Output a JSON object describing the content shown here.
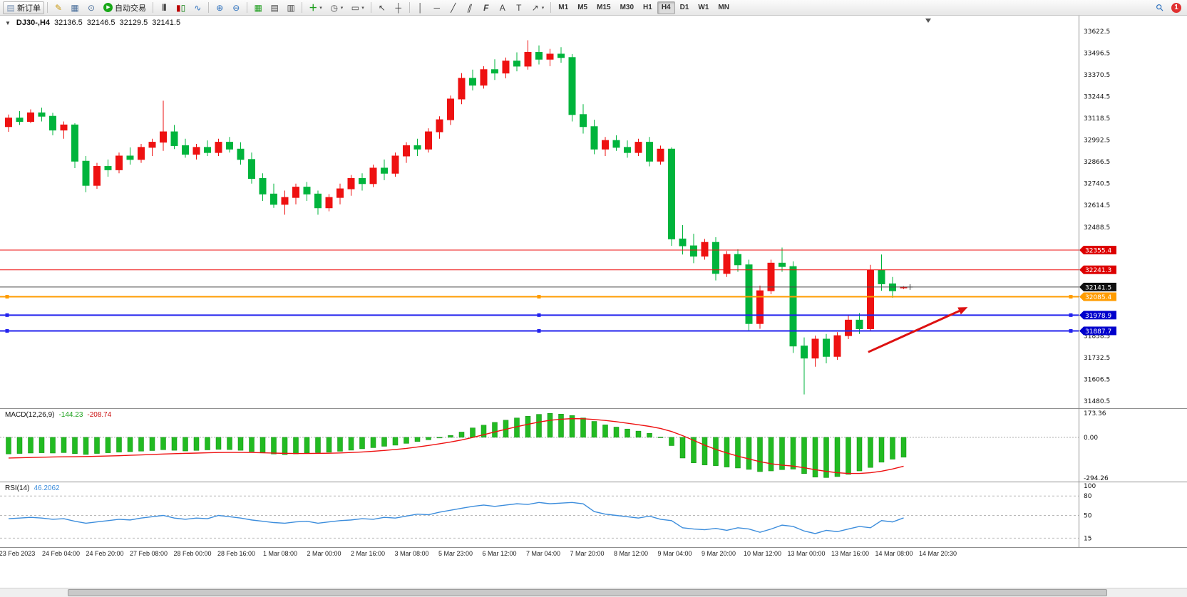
{
  "toolbar": {
    "new_order_label": "新订单",
    "autotrading_label": "自动交易",
    "timeframes": [
      "M1",
      "M5",
      "M15",
      "M30",
      "H1",
      "H4",
      "D1",
      "W1",
      "MN"
    ],
    "active_timeframe": "H4",
    "notification_badge": "1"
  },
  "chart_title": {
    "collapse_icon": "▼",
    "symbol_period": "DJ30-,H4",
    "open": "32136.5",
    "high": "32146.5",
    "low": "32129.5",
    "close": "32141.5"
  },
  "chart_data": {
    "type": "candlestick",
    "symbol": "DJ30-",
    "period": "H4",
    "colors": {
      "bull": "#ee1111",
      "bear": "#00b43c"
    },
    "price_axis": {
      "min": 31440,
      "max": 33700,
      "ticks": [
        33622.5,
        33496.5,
        33370.5,
        33244.5,
        33118.5,
        32992.5,
        32866.5,
        32740.5,
        32614.5,
        32488.5,
        31858.5,
        31732.5,
        31606.5,
        31480.5
      ]
    },
    "ohlc": [
      [
        33070,
        33140,
        33040,
        33120
      ],
      [
        33120,
        33160,
        33080,
        33100
      ],
      [
        33100,
        33170,
        33090,
        33150
      ],
      [
        33150,
        33180,
        33100,
        33130
      ],
      [
        33130,
        33150,
        33020,
        33050
      ],
      [
        33050,
        33100,
        33000,
        33080
      ],
      [
        33080,
        33090,
        32830,
        32870
      ],
      [
        32870,
        32900,
        32690,
        32730
      ],
      [
        32730,
        32860,
        32710,
        32840
      ],
      [
        32840,
        32880,
        32780,
        32820
      ],
      [
        32820,
        32920,
        32800,
        32900
      ],
      [
        32900,
        32950,
        32850,
        32880
      ],
      [
        32880,
        32970,
        32860,
        32950
      ],
      [
        32950,
        33000,
        32900,
        32980
      ],
      [
        32980,
        33220,
        32930,
        33040
      ],
      [
        33040,
        33080,
        32940,
        32960
      ],
      [
        32960,
        33000,
        32890,
        32910
      ],
      [
        32910,
        32970,
        32880,
        32950
      ],
      [
        32950,
        32990,
        32900,
        32920
      ],
      [
        32920,
        33000,
        32900,
        32980
      ],
      [
        32980,
        33010,
        32920,
        32940
      ],
      [
        32940,
        32980,
        32850,
        32880
      ],
      [
        32880,
        32920,
        32740,
        32770
      ],
      [
        32770,
        32800,
        32640,
        32680
      ],
      [
        32680,
        32740,
        32600,
        32620
      ],
      [
        32620,
        32700,
        32560,
        32660
      ],
      [
        32660,
        32740,
        32620,
        32720
      ],
      [
        32720,
        32750,
        32640,
        32680
      ],
      [
        32680,
        32700,
        32560,
        32600
      ],
      [
        32600,
        32680,
        32580,
        32660
      ],
      [
        32660,
        32740,
        32620,
        32710
      ],
      [
        32710,
        32790,
        32670,
        32770
      ],
      [
        32770,
        32800,
        32700,
        32740
      ],
      [
        32740,
        32850,
        32720,
        32830
      ],
      [
        32830,
        32880,
        32760,
        32800
      ],
      [
        32800,
        32920,
        32780,
        32900
      ],
      [
        32900,
        32980,
        32860,
        32960
      ],
      [
        32960,
        33000,
        32900,
        32940
      ],
      [
        32940,
        33060,
        32920,
        33040
      ],
      [
        33040,
        33130,
        33000,
        33110
      ],
      [
        33110,
        33250,
        33080,
        33230
      ],
      [
        33230,
        33380,
        33200,
        33350
      ],
      [
        33350,
        33400,
        33280,
        33310
      ],
      [
        33310,
        33420,
        33290,
        33400
      ],
      [
        33400,
        33460,
        33340,
        33380
      ],
      [
        33380,
        33470,
        33350,
        33450
      ],
      [
        33450,
        33500,
        33390,
        33420
      ],
      [
        33420,
        33570,
        33400,
        33500
      ],
      [
        33500,
        33540,
        33430,
        33460
      ],
      [
        33460,
        33520,
        33420,
        33490
      ],
      [
        33490,
        33530,
        33440,
        33470
      ],
      [
        33470,
        33490,
        33100,
        33140
      ],
      [
        33140,
        33200,
        33030,
        33070
      ],
      [
        33070,
        33110,
        32910,
        32940
      ],
      [
        32940,
        33010,
        32900,
        32990
      ],
      [
        32990,
        33020,
        32930,
        32950
      ],
      [
        32950,
        32990,
        32890,
        32920
      ],
      [
        32920,
        33000,
        32900,
        32980
      ],
      [
        32980,
        33010,
        32840,
        32870
      ],
      [
        32870,
        32960,
        32850,
        32940
      ],
      [
        32940,
        32950,
        32380,
        32420
      ],
      [
        32420,
        32500,
        32330,
        32380
      ],
      [
        32380,
        32450,
        32280,
        32320
      ],
      [
        32320,
        32420,
        32300,
        32400
      ],
      [
        32400,
        32430,
        32180,
        32220
      ],
      [
        32220,
        32350,
        32200,
        32330
      ],
      [
        32330,
        32360,
        32230,
        32270
      ],
      [
        32270,
        32300,
        31890,
        31930
      ],
      [
        31930,
        32150,
        31900,
        32120
      ],
      [
        32120,
        32300,
        32100,
        32280
      ],
      [
        32280,
        32370,
        32230,
        32260
      ],
      [
        32260,
        32290,
        31760,
        31800
      ],
      [
        31800,
        31850,
        31520,
        31730
      ],
      [
        31730,
        31860,
        31680,
        31840
      ],
      [
        31840,
        31870,
        31700,
        31740
      ],
      [
        31740,
        31880,
        31720,
        31860
      ],
      [
        31860,
        31980,
        31840,
        31950
      ],
      [
        31950,
        31990,
        31870,
        31900
      ],
      [
        31900,
        32270,
        31890,
        32240
      ],
      [
        32240,
        32330,
        32120,
        32160
      ],
      [
        32160,
        32200,
        32080,
        32120
      ],
      [
        32136.5,
        32146.5,
        32129.5,
        32141.5
      ]
    ],
    "hlines": [
      {
        "price": 32355.4,
        "label": "32355.4",
        "color": "#ee1111",
        "tag": "#dd0000",
        "width": 1,
        "handles": false
      },
      {
        "price": 32241.3,
        "label": "32241.3",
        "color": "#ee1111",
        "tag": "#dd0000",
        "width": 1,
        "handles": false
      },
      {
        "price": 32141.5,
        "label": "32141.5",
        "color": "#4a4a4a",
        "tag": "#111111",
        "width": 1,
        "handles": false
      },
      {
        "price": 32085.4,
        "label": "32085.4",
        "color": "#ff9c00",
        "tag": "#ff9c00",
        "width": 2,
        "handles": true
      },
      {
        "price": 31978.9,
        "label": "31978.9",
        "color": "#2222ee",
        "tag": "#0000cc",
        "width": 2,
        "handles": true
      },
      {
        "price": 31887.7,
        "label": "31887.7",
        "color": "#2222ee",
        "tag": "#0000cc",
        "width": 2,
        "handles": true
      }
    ],
    "arrow": {
      "from_index": 77.8,
      "from_price": 31765,
      "to_index": 86.8,
      "to_price": 32025,
      "color": "#dd1111"
    },
    "time_labels": [
      "23 Feb 2023",
      "24 Feb 04:00",
      "24 Feb 20:00",
      "27 Feb 08:00",
      "28 Feb 00:00",
      "28 Feb 16:00",
      "1 Mar 08:00",
      "2 Mar 00:00",
      "2 Mar 16:00",
      "3 Mar 08:00",
      "5 Mar 23:00",
      "6 Mar 12:00",
      "7 Mar 04:00",
      "7 Mar 20:00",
      "8 Mar 12:00",
      "9 Mar 04:00",
      "9 Mar 20:00",
      "10 Mar 12:00",
      "13 Mar 00:00",
      "13 Mar 16:00",
      "14 Mar 08:00",
      "14 Mar 20:30"
    ]
  },
  "indicators": {
    "macd": {
      "label": "MACD(12,26,9)",
      "value_main": "-144.23",
      "value_signal": "-208.74",
      "axis": {
        "min": -320,
        "max": 200,
        "ticks": [
          173.36,
          0,
          -294.26
        ]
      },
      "hist_color": "#22bb22",
      "signal_color": "#ee1111",
      "histogram": [
        -120,
        -117,
        -114,
        -112,
        -114,
        -111,
        -118,
        -124,
        -117,
        -112,
        -107,
        -104,
        -100,
        -96,
        -90,
        -94,
        -99,
        -95,
        -91,
        -87,
        -89,
        -94,
        -103,
        -113,
        -121,
        -125,
        -120,
        -113,
        -110,
        -108,
        -101,
        -93,
        -83,
        -75,
        -65,
        -57,
        -44,
        -30,
        -18,
        -4,
        14,
        38,
        68,
        88,
        108,
        124,
        140,
        152,
        166,
        173,
        168,
        158,
        140,
        115,
        90,
        74,
        60,
        45,
        29,
        2,
        -60,
        -150,
        -185,
        -200,
        -205,
        -215,
        -222,
        -232,
        -248,
        -243,
        -234,
        -230,
        -262,
        -288,
        -291,
        -284,
        -268,
        -243,
        -218,
        -180,
        -158,
        -144
      ],
      "signal": [
        -150,
        -148,
        -146,
        -144,
        -142,
        -141,
        -140,
        -139,
        -137,
        -135,
        -133,
        -130,
        -127,
        -124,
        -121,
        -118,
        -116,
        -114,
        -112,
        -110,
        -109,
        -109,
        -110,
        -112,
        -114,
        -116,
        -117,
        -117,
        -116,
        -115,
        -113,
        -110,
        -106,
        -101,
        -95,
        -88,
        -80,
        -70,
        -59,
        -47,
        -34,
        -19,
        -1,
        19,
        39,
        58,
        77,
        94,
        110,
        123,
        131,
        135,
        134,
        129,
        122,
        113,
        102,
        91,
        79,
        64,
        42,
        12,
        -22,
        -57,
        -87,
        -113,
        -136,
        -156,
        -176,
        -191,
        -201,
        -208,
        -220,
        -234,
        -246,
        -256,
        -261,
        -261,
        -256,
        -245,
        -229,
        -209
      ]
    },
    "rsi": {
      "label": "RSI(14)",
      "value": "46.2062",
      "color": "#3c8ddc",
      "levels": [
        80,
        50,
        15
      ],
      "axis_ticks": [
        100,
        80,
        50,
        15
      ],
      "values": [
        45,
        46,
        47,
        46,
        44,
        45,
        41,
        38,
        40,
        42,
        44,
        43,
        46,
        48,
        50,
        46,
        44,
        46,
        45,
        50,
        48,
        46,
        43,
        41,
        39,
        38,
        40,
        41,
        38,
        40,
        42,
        43,
        45,
        44,
        47,
        46,
        49,
        52,
        51,
        55,
        58,
        61,
        64,
        66,
        64,
        66,
        68,
        67,
        70,
        68,
        69,
        70,
        68,
        56,
        52,
        50,
        48,
        46,
        49,
        44,
        42,
        31,
        29,
        28,
        30,
        27,
        31,
        29,
        24,
        29,
        35,
        33,
        26,
        22,
        27,
        25,
        29,
        33,
        31,
        42,
        40,
        46.21
      ]
    }
  }
}
